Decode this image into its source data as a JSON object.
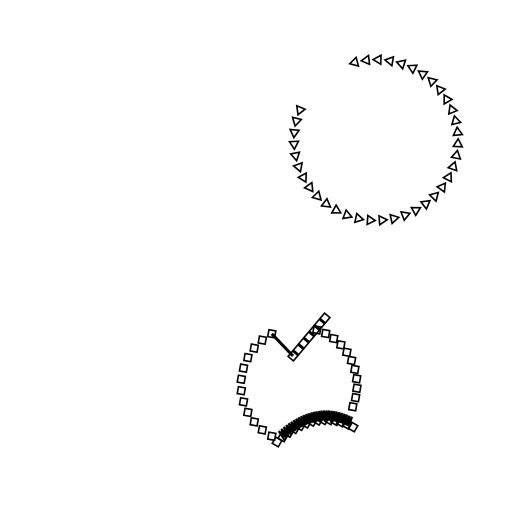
{
  "scene": {
    "background": "#ffffff",
    "stroke_color": "#000000",
    "figures": [
      {
        "name": "triangle-arc",
        "marker": "triangle",
        "count": 38
      },
      {
        "name": "square-ring",
        "marker": "square",
        "count": 48,
        "connector": "straight-line",
        "squiggle": "zigzag"
      }
    ]
  }
}
